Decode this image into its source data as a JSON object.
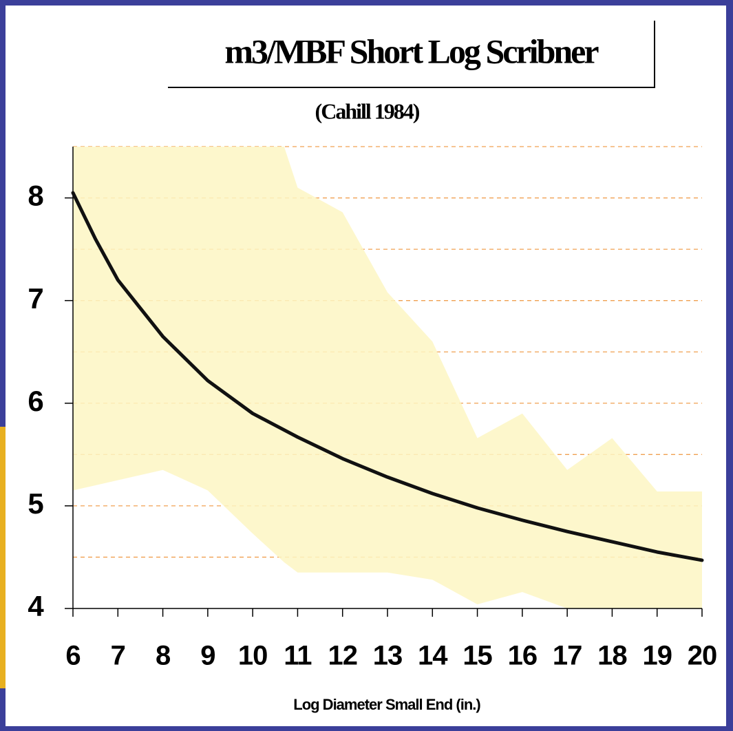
{
  "chart_data": {
    "type": "line",
    "title": "m3/MBF Short Log Scribner",
    "subtitle": "(Cahill 1984)",
    "x_label": "Log Diameter Small End (in.)",
    "xlim": [
      6,
      20
    ],
    "xticks": [
      6,
      7,
      8,
      9,
      10,
      11,
      12,
      13,
      14,
      15,
      16,
      17,
      18,
      19,
      20
    ],
    "ylim": [
      4,
      8.5
    ],
    "yticks": [
      4,
      5,
      6,
      7,
      8
    ],
    "ygrid": [
      4.5,
      5,
      5.5,
      6,
      6.5,
      7,
      7.5,
      8,
      8.5
    ],
    "grid_color": "#f0a050",
    "band": {
      "color": "#fdf6c3",
      "x": [
        6,
        7,
        8,
        9,
        10,
        10.7,
        11,
        12,
        13,
        14,
        15,
        16,
        17,
        18,
        19,
        20
      ],
      "upper": [
        8.5,
        8.5,
        8.5,
        8.5,
        8.5,
        8.5,
        8.1,
        7.86,
        7.08,
        6.6,
        5.66,
        5.9,
        5.35,
        5.66,
        5.14,
        5.14
      ],
      "lower": [
        5.15,
        5.25,
        5.35,
        5.15,
        4.73,
        4.45,
        4.35,
        4.35,
        4.35,
        4.28,
        4.04,
        4.16,
        4,
        4,
        4,
        4
      ]
    },
    "line": {
      "color": "#111111",
      "x": [
        6,
        6.5,
        7,
        8,
        9,
        10,
        11,
        12,
        13,
        14,
        15,
        16,
        17,
        18,
        19,
        20
      ],
      "values": [
        8.05,
        7.6,
        7.2,
        6.65,
        6.22,
        5.9,
        5.67,
        5.46,
        5.28,
        5.12,
        4.98,
        4.86,
        4.75,
        4.65,
        4.55,
        4.47
      ]
    }
  }
}
